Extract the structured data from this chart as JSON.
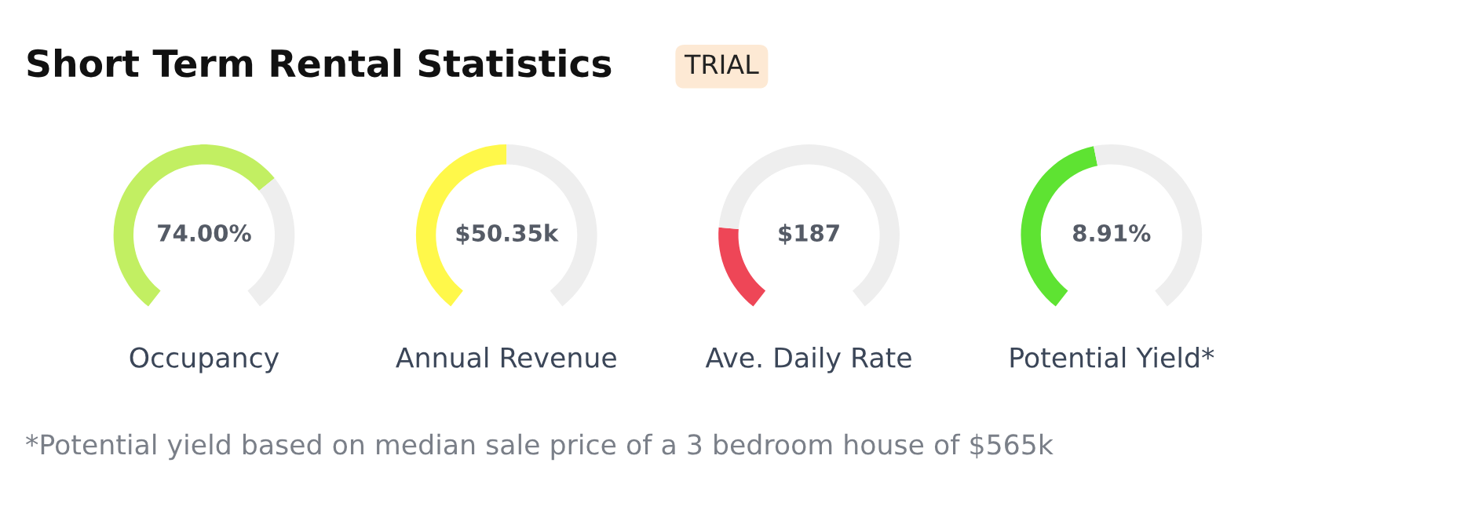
{
  "chart_data": [
    {
      "type": "donut",
      "title": "Short Term Rental Statistics",
      "annotations": [
        "74.00%",
        "TRIAL",
        "*Potential yield based on median sale price of a 3 bedroom house of $565k"
      ],
      "xlabel": "Occupancy",
      "categories": [
        null,
        null
      ],
      "values": [
        68,
        32
      ],
      "colors": [
        "#c2ef62",
        "#eeeeee"
      ]
    },
    {
      "type": "donut",
      "xlabel": "Annual Revenue",
      "categories": [
        null,
        null
      ],
      "values": [
        50,
        50
      ],
      "colors": [
        "#fff84a",
        "#eeeeee"
      ],
      "annotations": [
        "$50.35k"
      ]
    },
    {
      "type": "donut",
      "xlabel": "Ave. Daily Rate",
      "categories": [
        null,
        null
      ],
      "values": [
        20,
        80
      ],
      "colors": [
        "#ee4657",
        "#eeeeee"
      ],
      "annotations": [
        "$187"
      ]
    },
    {
      "type": "donut",
      "xlabel": "Potential Yield*",
      "categories": [
        null,
        null
      ],
      "values": [
        46,
        54
      ],
      "colors": [
        "#5ee332",
        "#eeeeee"
      ],
      "annotations": [
        "8.91%"
      ]
    }
  ]
}
